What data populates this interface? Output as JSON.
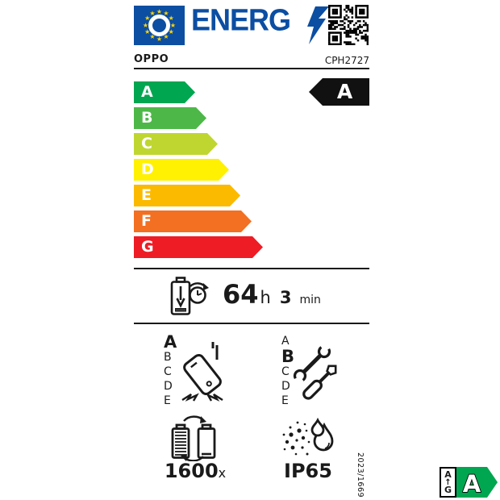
{
  "header": {
    "logo_text": "ENERG"
  },
  "product": {
    "brand": "OPPO",
    "model": "CPH2727"
  },
  "colors": {
    "eu_blue": "#0b4ea2",
    "star_yellow": "#ffd500",
    "badge_green": "#00a650",
    "ink": "#1a1a1a"
  },
  "energy_scale": {
    "rated_class": "A",
    "classes": [
      {
        "label": "A",
        "color": "#00a650"
      },
      {
        "label": "B",
        "color": "#4db848"
      },
      {
        "label": "C",
        "color": "#bfd630"
      },
      {
        "label": "D",
        "color": "#fff101"
      },
      {
        "label": "E",
        "color": "#fbba00"
      },
      {
        "label": "F",
        "color": "#f36f21"
      },
      {
        "label": "G",
        "color": "#ee1c25"
      }
    ]
  },
  "battery_endurance": {
    "hours": "64",
    "hours_unit": "h",
    "minutes": "3",
    "minutes_unit": "min"
  },
  "drop_resistance": {
    "scale": [
      "A",
      "B",
      "C",
      "D",
      "E"
    ],
    "rated_class": "A"
  },
  "repairability": {
    "scale": [
      "A",
      "B",
      "C",
      "D",
      "E"
    ],
    "rated_class": "B"
  },
  "battery_cycles": {
    "value": "1600",
    "unit": "x"
  },
  "ingress_protection": {
    "rating": "IP65"
  },
  "regulation_number": "2023/1669",
  "corner_badge": {
    "scale_top": "A",
    "scale_bottom": "G",
    "rated_class": "A"
  }
}
